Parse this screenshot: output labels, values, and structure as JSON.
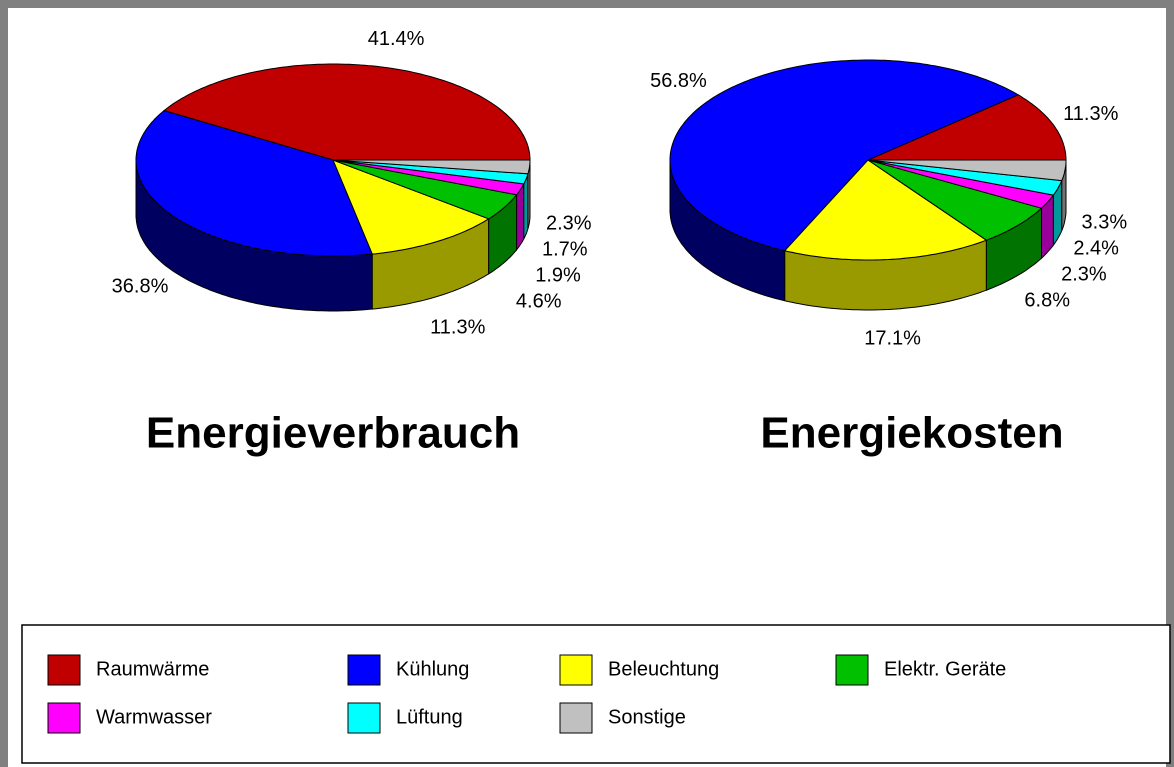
{
  "chart_data": [
    {
      "type": "pie",
      "title": "Energieverbrauch",
      "categories": [
        "Raumwärme",
        "Kühlung",
        "Beleuchtung",
        "Elektr. Geräte",
        "Warmwasser",
        "Lüftung",
        "Sonstige"
      ],
      "values": [
        41.4,
        36.8,
        11.3,
        4.6,
        1.9,
        1.7,
        2.3
      ],
      "value_labels": [
        "41.4%",
        "36.8%",
        "11.3%",
        "4.6%",
        "1.9%",
        "1.7%",
        "2.3%"
      ],
      "colors": [
        "#c00000",
        "#0000ff",
        "#ffff00",
        "#00c000",
        "#ff00ff",
        "#00ffff",
        "#c0c0c0"
      ]
    },
    {
      "type": "pie",
      "title": "Energiekosten",
      "categories": [
        "Raumwärme",
        "Kühlung",
        "Beleuchtung",
        "Elektr. Geräte",
        "Warmwasser",
        "Lüftung",
        "Sonstige"
      ],
      "values": [
        11.3,
        56.8,
        17.1,
        6.8,
        2.3,
        2.4,
        3.3
      ],
      "value_labels": [
        "11.3%",
        "56.8%",
        "17.1%",
        "6.8%",
        "2.3%",
        "2.4%",
        "3.3%"
      ],
      "colors": [
        "#c00000",
        "#0000ff",
        "#ffff00",
        "#00c000",
        "#ff00ff",
        "#00ffff",
        "#c0c0c0"
      ]
    }
  ]
}
